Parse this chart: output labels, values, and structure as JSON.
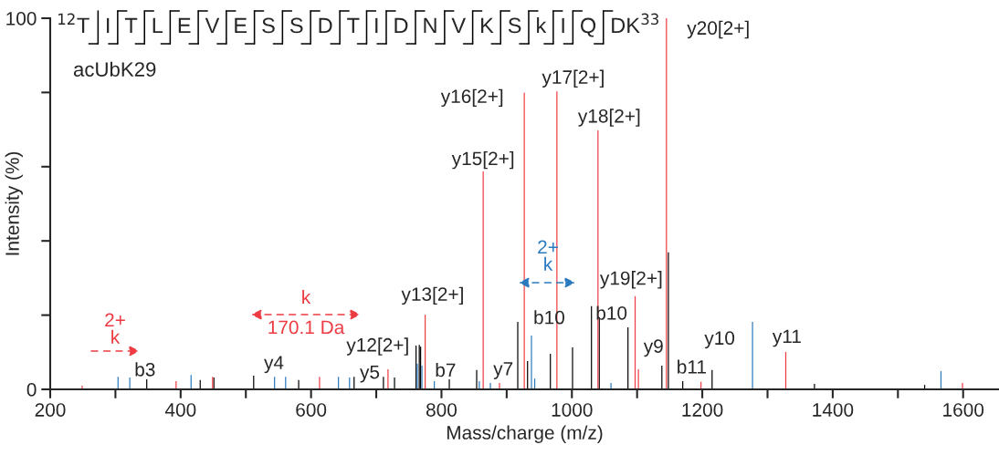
{
  "chart_data": {
    "type": "bar",
    "xlabel": "Mass/charge (m/z)",
    "ylabel": "Intensity (%)",
    "xlim": [
      200,
      1655
    ],
    "ylim": [
      0,
      100
    ],
    "xticks": [
      200,
      {
        "value": 300,
        "label": null
      },
      400,
      {
        "value": 500,
        "label": null
      },
      600,
      {
        "value": 700,
        "label": null
      },
      800,
      {
        "value": 900,
        "label": null
      },
      1000,
      {
        "value": 1100,
        "label": null
      },
      1200,
      {
        "value": 1300,
        "label": null
      },
      1400,
      {
        "value": 1500,
        "label": null
      },
      1600
    ],
    "yticks": [
      0,
      {
        "value": 20,
        "label": null
      },
      {
        "value": 40,
        "label": null
      },
      {
        "value": 60,
        "label": null
      },
      {
        "value": 80,
        "label": null
      },
      100
    ],
    "grid": false,
    "series": [
      {
        "color": "#000000",
        "x": [
          348,
          430,
          451,
          512,
          581,
          666,
          711,
          728,
          761,
          766,
          768,
          812,
          854,
          865,
          917,
          927,
          932,
          967,
          1001,
          1030,
          1042,
          1086,
          1138,
          1148,
          1170,
          1215,
          1372,
          1541
        ],
        "values": [
          2.7,
          2.5,
          3.2,
          3.7,
          2.5,
          3.4,
          3.4,
          3.2,
          11.8,
          12,
          11.5,
          2.7,
          5.2,
          null,
          18.2,
          null,
          7.6,
          9.6,
          11.3,
          22.4,
          19.4,
          16.7,
          6.4,
          36.9,
          2.2,
          5.2,
          1.5,
          1.2
        ]
      },
      {
        "color": "#ee3b43",
        "x": [
          249,
          393,
          449,
          613,
          718,
          775,
          864,
          889,
          927,
          977,
          1040,
          1097,
          1102,
          1145,
          1198,
          1328,
          1599
        ],
        "values": [
          1.0,
          2.2,
          3.4,
          3.4,
          5.4,
          20.1,
          58.7,
          1.7,
          79.9,
          80.3,
          69.8,
          25.1,
          5.4,
          100,
          2.0,
          10.1,
          1.7
        ]
      },
      {
        "color": "#2a7ac0",
        "x": [
          304,
          322,
          416,
          544,
          561,
          642,
          659,
          763,
          770,
          789,
          858,
          875,
          938,
          943,
          1060,
          1277,
          1566
        ],
        "values": [
          3.4,
          3.2,
          3.9,
          3.4,
          3.4,
          3.4,
          3.2,
          6.9,
          6.4,
          2.2,
          2.2,
          1.7,
          14.5,
          2.9,
          1.7,
          18.2,
          4.9
        ]
      }
    ],
    "annotations": [
      "$^{12}$T I T L E V E S S D T I D N V K S k I Q DK$^{33}$",
      "acUbK29",
      {
        "text": "y20[2+]",
        "x": 1145,
        "y": 100
      },
      {
        "text": "y16[2+]",
        "x": 927,
        "y": 79.9
      },
      {
        "text": "y17[2+]",
        "x": 977,
        "y": 80.3
      },
      {
        "text": "y18[2+]",
        "x": 1040,
        "y": 69.8
      },
      {
        "text": "y15[2+]",
        "x": 864,
        "y": 58.7
      },
      {
        "text": "y19[2+]",
        "x": 1097,
        "y": 25.1
      },
      {
        "text": "y13[2+]",
        "x": 775,
        "y": 20.1
      },
      {
        "text": "b10",
        "x": 938,
        "y": 14.5
      },
      {
        "text": "b10",
        "x": 1086,
        "y": 16.7
      },
      {
        "text": "y12[2+]",
        "x": 718,
        "y": 5.4
      },
      {
        "text": "y9",
        "x": 1102,
        "y": 5.4
      },
      {
        "text": "y10",
        "x": 1215,
        "y": 5.2
      },
      {
        "text": "y11",
        "x": 1328,
        "y": 10.1
      },
      {
        "text": "b11",
        "x": 1170,
        "y": 2.2
      },
      {
        "text": "y7",
        "x": 889,
        "y": 1.7
      },
      {
        "text": "b7",
        "x": 812,
        "y": 2.7
      },
      {
        "text": "y5",
        "x": 659,
        "y": 3.2
      },
      {
        "text": "y4",
        "x": 512,
        "y": 3.7
      },
      {
        "text": "b3",
        "x": 322,
        "y": 3.2
      },
      "2+\nk",
      "k\n170.1 Da",
      "2+\nk"
    ]
  }
}
